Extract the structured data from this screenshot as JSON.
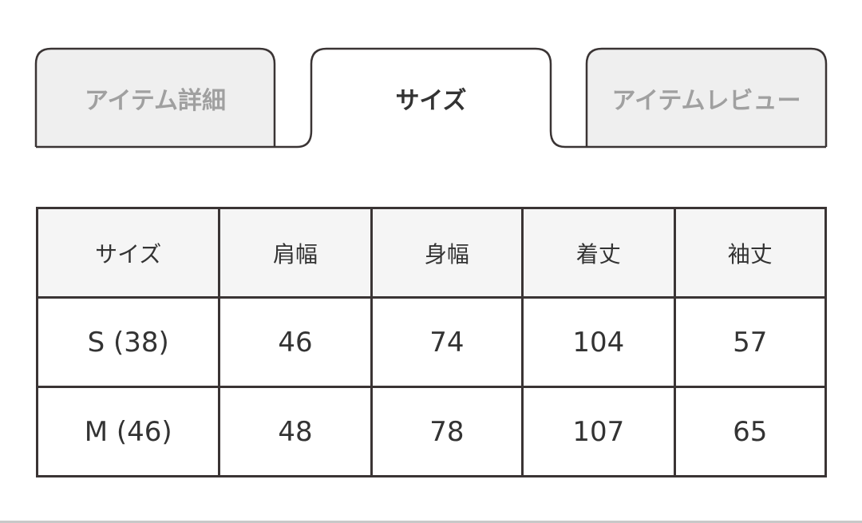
{
  "tabs": [
    {
      "label": "アイテム詳細",
      "active": false
    },
    {
      "label": "サイズ",
      "active": true
    },
    {
      "label": "アイテムレビュー",
      "active": false
    }
  ],
  "size_table": {
    "headers": [
      "サイズ",
      "肩幅",
      "身幅",
      "着丈",
      "袖丈"
    ],
    "rows": [
      [
        "S (38)",
        "46",
        "74",
        "104",
        "57"
      ],
      [
        "M (46)",
        "48",
        "78",
        "107",
        "65"
      ]
    ]
  },
  "colors": {
    "border": "#3a3434",
    "inactive_tab_bg": "#efefef",
    "header_bg": "#f5f5f5"
  }
}
